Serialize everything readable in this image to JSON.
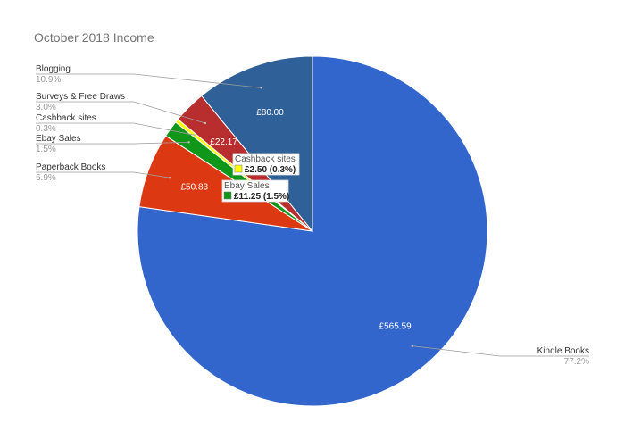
{
  "chart_data": {
    "type": "pie",
    "title": "October 2018 Income",
    "slices": [
      {
        "label": "Kindle Books",
        "value": 565.59,
        "value_label": "£565.59",
        "percent_label": "77.2%",
        "color": "#3366cc"
      },
      {
        "label": "Paperback Books",
        "value": 50.83,
        "value_label": "£50.83",
        "percent_label": "6.9%",
        "color": "#dc3912"
      },
      {
        "label": "Ebay Sales",
        "value": 11.25,
        "value_label": "",
        "percent_label": "1.5%",
        "color": "#109618"
      },
      {
        "label": "Cashback sites",
        "value": 2.5,
        "value_label": "",
        "percent_label": "0.3%",
        "color": "#ffff00"
      },
      {
        "label": "Surveys & Free Draws",
        "value": 22.17,
        "value_label": "£22.17",
        "percent_label": "3.0%",
        "color": "#b82e2e"
      },
      {
        "label": "Blogging",
        "value": 80.0,
        "value_label": "£80.00",
        "percent_label": "10.9%",
        "color": "#2f6097"
      }
    ],
    "callouts": [
      {
        "name": "Cashback sites",
        "value": "£2.50 (0.3%)",
        "color": "#ffff00"
      },
      {
        "name": "Ebay Sales",
        "value": "£11.25 (1.5%)",
        "color": "#109618"
      }
    ]
  }
}
